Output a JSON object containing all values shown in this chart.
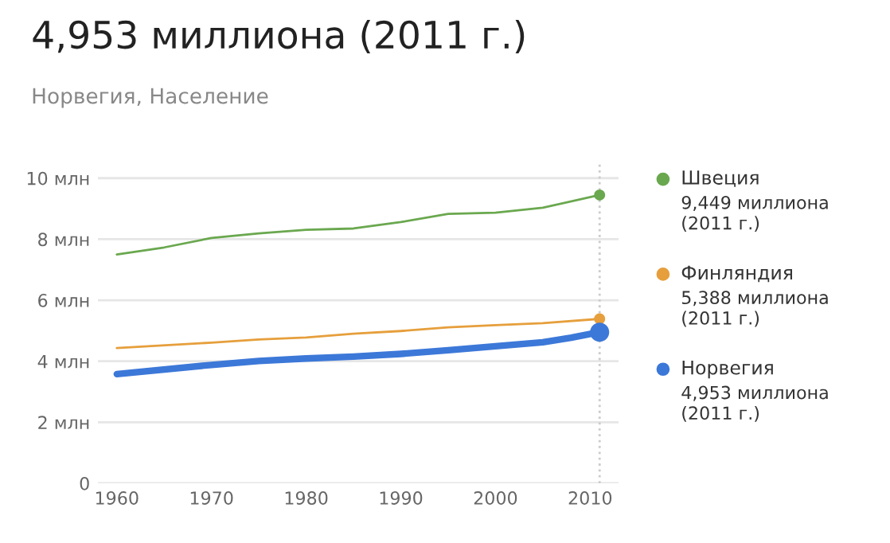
{
  "chart_data": {
    "type": "line",
    "title": "4,953 миллиона (2011 г.)",
    "subtitle": "Норвегия, Население",
    "xlim": [
      1958,
      2013
    ],
    "xticks": [
      1960,
      1970,
      1980,
      1990,
      2000,
      2010
    ],
    "ylim": [
      0,
      10.5
    ],
    "yticks": [
      {
        "value": 0,
        "label": "0"
      },
      {
        "value": 2,
        "label": "2 млн"
      },
      {
        "value": 4,
        "label": "4 млн"
      },
      {
        "value": 6,
        "label": "6 млн"
      },
      {
        "value": 8,
        "label": "8 млн"
      },
      {
        "value": 10,
        "label": "10 млн"
      }
    ],
    "grid": "y",
    "legend": "right",
    "line_style": "solid",
    "ref_lines": [
      {
        "axis": "x",
        "value": 2011,
        "line_style": "dotted",
        "color": "#cccccc"
      }
    ],
    "series": [
      {
        "name": "Швеция",
        "color": "#6aa84f",
        "x": [
          1960,
          1965,
          1970,
          1975,
          1980,
          1985,
          1990,
          1995,
          2000,
          2005,
          2011
        ],
        "values": [
          7.5,
          7.73,
          8.04,
          8.19,
          8.31,
          8.35,
          8.56,
          8.83,
          8.87,
          9.03,
          9.449
        ]
      },
      {
        "name": "Финляндия",
        "color": "#e69f3c",
        "x": [
          1960,
          1970,
          1975,
          1980,
          1985,
          1990,
          1995,
          2000,
          2005,
          2011
        ],
        "values": [
          4.43,
          4.61,
          4.71,
          4.78,
          4.9,
          4.99,
          5.11,
          5.18,
          5.25,
          5.388
        ]
      },
      {
        "name": "Норвегия",
        "color": "#3c78d8",
        "x": [
          1960,
          1970,
          1975,
          1980,
          1985,
          1990,
          1995,
          2000,
          2005,
          2008,
          2011
        ],
        "values": [
          3.58,
          3.88,
          4.01,
          4.09,
          4.15,
          4.24,
          4.36,
          4.49,
          4.62,
          4.77,
          4.953
        ]
      },
      {
        "type": "scatter",
        "color": "#6aa84f",
        "x": [
          2011
        ],
        "values": [
          9.449
        ]
      },
      {
        "type": "scatter",
        "color": "#e69f3c",
        "x": [
          2011
        ],
        "values": [
          5.388
        ]
      },
      {
        "type": "scatter",
        "color": "#3c78d8",
        "x": [
          2011
        ],
        "values": [
          4.953
        ]
      }
    ],
    "annotations": [
      "9,449 миллиона\n(2011 г.)",
      "5,388 миллиона\n(2011 г.)",
      "4,953 миллиона\n(2011 г.)"
    ]
  }
}
